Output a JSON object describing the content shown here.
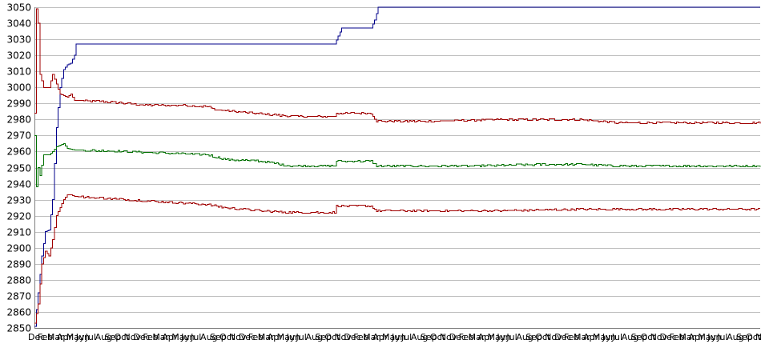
{
  "chart_data": {
    "type": "line",
    "title": "",
    "xlabel": "",
    "ylabel": "",
    "ylim": [
      2850,
      3050
    ],
    "yticks": [
      2850,
      2860,
      2870,
      2880,
      2890,
      2900,
      2910,
      2920,
      2930,
      2940,
      2950,
      2960,
      2970,
      2980,
      2990,
      3000,
      3010,
      3020,
      3030,
      3040,
      3050
    ],
    "grid": "horizontal",
    "legend": "none",
    "x_tick_pattern": [
      "Dec",
      "Feb",
      "Mar",
      "Apr",
      "May",
      "Jun",
      "Jul",
      "Aug",
      "Sep",
      "Oct",
      "Nov"
    ],
    "x_tick_repeats": 7,
    "x_count": 400,
    "series": [
      {
        "key": "blue",
        "color": "#00008b",
        "noise": 0,
        "anchors": [
          [
            0,
            2851
          ],
          [
            2,
            2872
          ],
          [
            4,
            2895
          ],
          [
            6,
            2910
          ],
          [
            8,
            2911
          ],
          [
            10,
            2930
          ],
          [
            12,
            2975
          ],
          [
            14,
            3000
          ],
          [
            16,
            3011
          ],
          [
            18,
            3014
          ],
          [
            20,
            3015
          ],
          [
            22,
            3020
          ],
          [
            23,
            3027
          ],
          [
            165,
            3027
          ],
          [
            167,
            3032
          ],
          [
            169,
            3037
          ],
          [
            185,
            3037
          ],
          [
            187,
            3042
          ],
          [
            189,
            3050
          ],
          [
            399,
            3050
          ]
        ]
      },
      {
        "key": "upper-red",
        "color": "#a00000",
        "noise": 0.6,
        "anchors": [
          [
            0,
            2984
          ],
          [
            1,
            3049
          ],
          [
            2,
            3040
          ],
          [
            3,
            3008
          ],
          [
            5,
            3000
          ],
          [
            8,
            3000
          ],
          [
            10,
            3008
          ],
          [
            12,
            3002
          ],
          [
            14,
            2996
          ],
          [
            16,
            2995
          ],
          [
            18,
            2994
          ],
          [
            20,
            2996
          ],
          [
            22,
            2992
          ],
          [
            40,
            2991
          ],
          [
            60,
            2989
          ],
          [
            80,
            2989
          ],
          [
            95,
            2988
          ],
          [
            100,
            2986
          ],
          [
            120,
            2984
          ],
          [
            140,
            2982
          ],
          [
            155,
            2982
          ],
          [
            165,
            2982
          ],
          [
            166,
            2984
          ],
          [
            185,
            2984
          ],
          [
            188,
            2979
          ],
          [
            220,
            2979
          ],
          [
            260,
            2980
          ],
          [
            300,
            2980
          ],
          [
            320,
            2978
          ],
          [
            360,
            2978
          ],
          [
            399,
            2978
          ]
        ]
      },
      {
        "key": "green",
        "color": "#007000",
        "noise": 0.6,
        "anchors": [
          [
            0,
            2970
          ],
          [
            1,
            2938
          ],
          [
            2,
            2950
          ],
          [
            3,
            2945
          ],
          [
            5,
            2958
          ],
          [
            8,
            2958
          ],
          [
            10,
            2960
          ],
          [
            12,
            2963
          ],
          [
            14,
            2964
          ],
          [
            16,
            2965
          ],
          [
            18,
            2962
          ],
          [
            22,
            2961
          ],
          [
            50,
            2960
          ],
          [
            95,
            2958
          ],
          [
            105,
            2955
          ],
          [
            125,
            2954
          ],
          [
            140,
            2951
          ],
          [
            165,
            2951
          ],
          [
            166,
            2954
          ],
          [
            185,
            2954
          ],
          [
            188,
            2951
          ],
          [
            240,
            2951
          ],
          [
            280,
            2952
          ],
          [
            300,
            2952
          ],
          [
            320,
            2951
          ],
          [
            399,
            2951
          ]
        ]
      },
      {
        "key": "lower-red",
        "color": "#a00000",
        "noise": 0.6,
        "anchors": [
          [
            0,
            2853
          ],
          [
            2,
            2865
          ],
          [
            4,
            2890
          ],
          [
            6,
            2898
          ],
          [
            8,
            2895
          ],
          [
            10,
            2905
          ],
          [
            12,
            2920
          ],
          [
            14,
            2925
          ],
          [
            16,
            2930
          ],
          [
            18,
            2933
          ],
          [
            20,
            2933
          ],
          [
            22,
            2932
          ],
          [
            50,
            2930
          ],
          [
            95,
            2927
          ],
          [
            105,
            2925
          ],
          [
            125,
            2923
          ],
          [
            140,
            2922
          ],
          [
            165,
            2922
          ],
          [
            166,
            2926
          ],
          [
            185,
            2926
          ],
          [
            188,
            2923
          ],
          [
            250,
            2923
          ],
          [
            300,
            2924
          ],
          [
            399,
            2924
          ]
        ]
      }
    ]
  }
}
